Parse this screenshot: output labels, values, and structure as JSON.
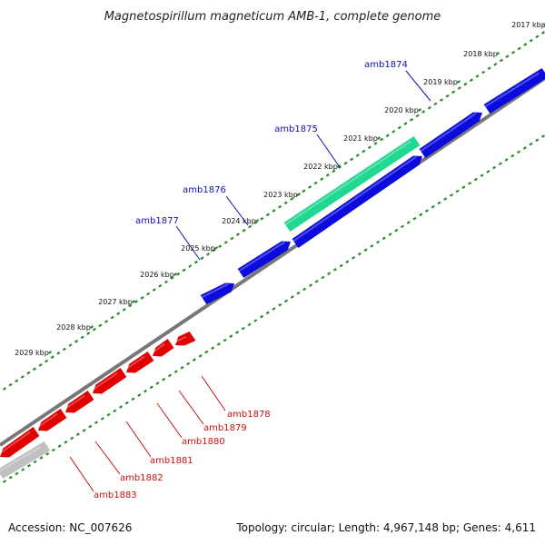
{
  "title": "Magnetospirillum magneticum AMB-1, complete genome",
  "footer": {
    "accession": "Accession: NC_007626",
    "info": "Topology: circular; Length: 4,967,148 bp; Genes: 4,611"
  },
  "colors": {
    "forward_gene": "#0b0bdd",
    "reverse_gene": "#e00000",
    "highlight_gene": "#22d890",
    "grey_gene": "#c0c0c0",
    "ruler_dots": "#2a8a2a",
    "backbone": "#777777",
    "forward_label": "#1010b0",
    "reverse_label": "#cc1010"
  },
  "kbp_ticks": [
    "2017 kbp",
    "2018 kbp",
    "2019 kbp",
    "2020 kbp",
    "2021 kbp",
    "2022 kbp",
    "2023 kbp",
    "2024 kbp",
    "2025 kbp",
    "2026 kbp",
    "2027 kbp",
    "2028 kbp",
    "2029 kbp"
  ],
  "forward_genes": [
    {
      "name": "amb1874",
      "strand": "+"
    },
    {
      "name": "amb1875",
      "strand": "+"
    },
    {
      "name": "amb1876",
      "strand": "+"
    },
    {
      "name": "amb1877",
      "strand": "+"
    }
  ],
  "reverse_genes": [
    {
      "name": "amb1878",
      "strand": "-"
    },
    {
      "name": "amb1879",
      "strand": "-"
    },
    {
      "name": "amb1880",
      "strand": "-"
    },
    {
      "name": "amb1881",
      "strand": "-"
    },
    {
      "name": "amb1882",
      "strand": "-"
    },
    {
      "name": "amb1883",
      "strand": "-"
    }
  ]
}
